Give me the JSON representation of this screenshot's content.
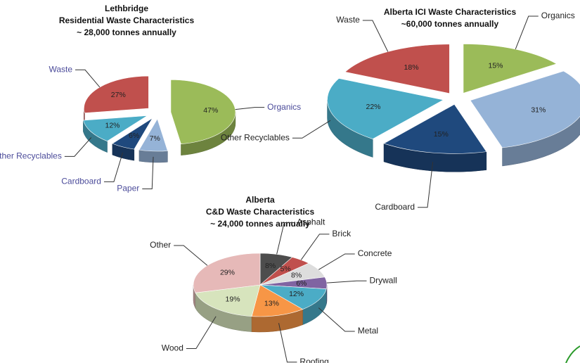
{
  "chart_data": [
    {
      "type": "pie",
      "title": [
        "Lethbridge",
        "Residential Waste Characteristics",
        "~ 28,000 tonnes annually"
      ],
      "categories": [
        "Organics",
        "Paper",
        "Cardboard",
        "Other Recyclables",
        "Waste"
      ],
      "values": [
        47,
        7,
        6,
        12,
        27
      ],
      "value_labels": [
        "47%",
        "7%",
        "6%",
        "12%",
        "27%"
      ],
      "colors": [
        "#9bbb59",
        "#95b3d7",
        "#1f497d",
        "#4bacc6",
        "#c0504d"
      ],
      "label_color": "#4b4b9a"
    },
    {
      "type": "pie",
      "title": [
        "Alberta ICI Waste Characteristics",
        "~60,000 tonnes annually"
      ],
      "categories": [
        "Organics",
        "Paper",
        "Cardboard",
        "Other Recyclables",
        "Waste"
      ],
      "values": [
        15,
        31,
        15,
        22,
        18
      ],
      "value_labels": [
        "15%",
        "31%",
        "15%",
        "22%",
        "18%"
      ],
      "colors": [
        "#9bbb59",
        "#95b3d7",
        "#1f497d",
        "#4bacc6",
        "#c0504d"
      ],
      "label_color": "#222222"
    },
    {
      "type": "pie",
      "title": [
        "Alberta",
        "C&D Waste Characteristics",
        "~ 24,000 tonnes annually"
      ],
      "categories": [
        "Asphalt",
        "Brick",
        "Concrete",
        "Drywall",
        "Metal",
        "Roofing",
        "Wood",
        "Other"
      ],
      "values": [
        8,
        5,
        8,
        6,
        12,
        13,
        19,
        29
      ],
      "value_labels": [
        "8%",
        "5%",
        "8%",
        "6%",
        "12%",
        "13%",
        "19%",
        "29%"
      ],
      "colors": [
        "#4d4d4d",
        "#c0504d",
        "#dddddd",
        "#8064a2",
        "#4bacc6",
        "#f79646",
        "#d7e4bd",
        "#e6b9b8"
      ],
      "label_color": "#222222"
    }
  ]
}
